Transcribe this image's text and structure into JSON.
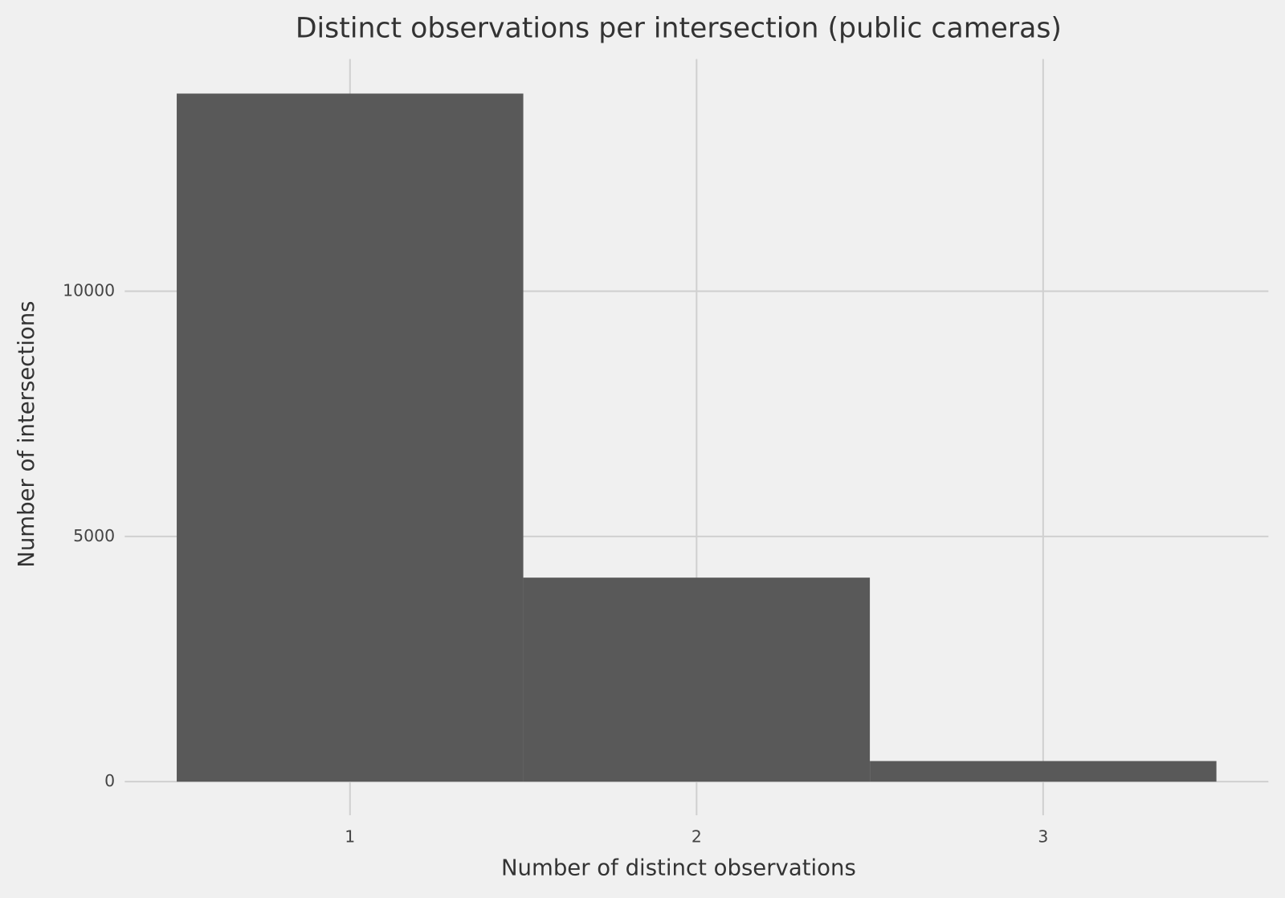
{
  "chart_data": {
    "type": "histogram",
    "title": "Distinct observations per intersection (public cameras)",
    "x_label": "Number of distinct observations",
    "y_label": "Number of intersections",
    "bins": [
      0.5,
      1.5,
      2.5,
      3.5
    ],
    "counts": [
      14030,
      4160,
      420
    ],
    "color": "#595959",
    "xlim": [
      0.35,
      3.65
    ],
    "ylim": [
      -685,
      14735
    ],
    "xticks": [
      1,
      2,
      3
    ],
    "yticks": [
      0,
      5000,
      10000
    ],
    "grid": true
  }
}
